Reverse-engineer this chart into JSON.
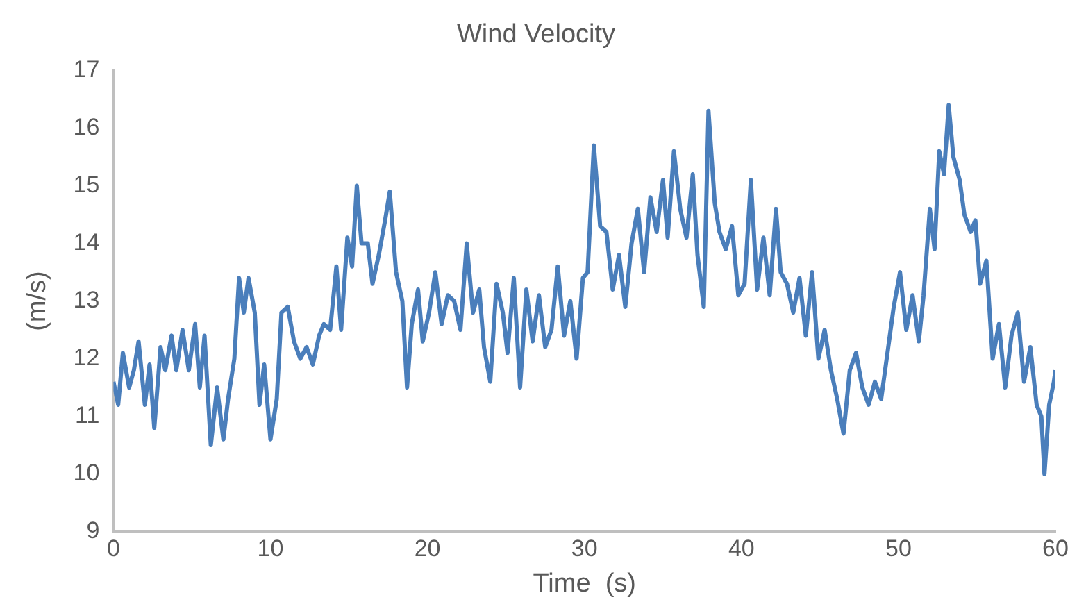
{
  "chart_data": {
    "type": "line",
    "title": "Wind Velocity",
    "xlabel": "Time  (s)",
    "ylabel": "(m/s)",
    "xlim": [
      0,
      60
    ],
    "xticks": [
      0,
      10,
      20,
      30,
      40,
      50,
      60
    ],
    "ylim": [
      9,
      17
    ],
    "yticks": [
      9,
      10,
      11,
      12,
      13,
      14,
      15,
      16,
      17
    ],
    "grid": false,
    "legend": false,
    "marker": "none",
    "line_style": "solid",
    "series": [
      {
        "color": "#4a7ebb",
        "x": [
          0,
          0.3,
          0.6,
          1,
          1.3,
          1.6,
          2,
          2.3,
          2.6,
          3,
          3.3,
          3.7,
          4,
          4.4,
          4.8,
          5.2,
          5.5,
          5.8,
          6.2,
          6.6,
          7,
          7.3,
          7.7,
          8,
          8.3,
          8.6,
          9,
          9.3,
          9.6,
          10,
          10.4,
          10.7,
          11.1,
          11.5,
          11.9,
          12.3,
          12.7,
          13.1,
          13.4,
          13.8,
          14.2,
          14.5,
          14.9,
          15.2,
          15.5,
          15.8,
          16.2,
          16.5,
          16.9,
          17.3,
          17.6,
          18,
          18.4,
          18.7,
          19,
          19.4,
          19.7,
          20.1,
          20.5,
          20.9,
          21.3,
          21.7,
          22.1,
          22.5,
          22.9,
          23.3,
          23.6,
          24,
          24.4,
          24.8,
          25.1,
          25.5,
          25.9,
          26.3,
          26.7,
          27.1,
          27.5,
          27.9,
          28.3,
          28.7,
          29.1,
          29.5,
          29.9,
          30.2,
          30.6,
          31,
          31.4,
          31.8,
          32.2,
          32.6,
          33,
          33.4,
          33.8,
          34.2,
          34.6,
          35,
          35.3,
          35.7,
          36.1,
          36.5,
          36.9,
          37.2,
          37.6,
          37.9,
          38.3,
          38.6,
          39,
          39.4,
          39.8,
          40.2,
          40.6,
          41,
          41.4,
          41.8,
          42.2,
          42.5,
          42.9,
          43.3,
          43.7,
          44.1,
          44.5,
          44.9,
          45.3,
          45.7,
          46.1,
          46.5,
          46.9,
          47.3,
          47.7,
          48.1,
          48.5,
          48.9,
          49.3,
          49.7,
          50.1,
          50.5,
          50.9,
          51.3,
          51.6,
          52,
          52.3,
          52.6,
          52.9,
          53.2,
          53.5,
          53.9,
          54.2,
          54.6,
          54.9,
          55.2,
          55.6,
          56,
          56.4,
          56.8,
          57.2,
          57.6,
          58,
          58.4,
          58.8,
          59.1,
          59.3,
          59.6,
          59.9,
          60
        ],
        "values": [
          11.6,
          11.2,
          12.1,
          11.5,
          11.8,
          12.3,
          11.2,
          11.9,
          10.8,
          12.2,
          11.8,
          12.4,
          11.8,
          12.5,
          11.8,
          12.6,
          11.5,
          12.4,
          10.5,
          11.5,
          10.6,
          11.3,
          12,
          13.4,
          12.8,
          13.4,
          12.8,
          11.2,
          11.9,
          10.6,
          11.3,
          12.8,
          12.9,
          12.3,
          12,
          12.2,
          11.9,
          12.4,
          12.6,
          12.5,
          13.6,
          12.5,
          14.1,
          13.6,
          15,
          14,
          14,
          13.3,
          13.8,
          14.4,
          14.9,
          13.5,
          13,
          11.5,
          12.6,
          13.2,
          12.3,
          12.8,
          13.5,
          12.6,
          13.1,
          13,
          12.5,
          14,
          12.8,
          13.2,
          12.2,
          11.6,
          13.3,
          12.8,
          12.1,
          13.4,
          11.5,
          13.2,
          12.3,
          13.1,
          12.2,
          12.5,
          13.6,
          12.4,
          13,
          12,
          13.4,
          13.5,
          15.7,
          14.3,
          14.2,
          13.2,
          13.8,
          12.9,
          14,
          14.6,
          13.5,
          14.8,
          14.2,
          15.1,
          14.1,
          15.6,
          14.6,
          14.1,
          15.2,
          13.8,
          12.9,
          16.3,
          14.7,
          14.2,
          13.9,
          14.3,
          13.1,
          13.3,
          15.1,
          13.2,
          14.1,
          13.1,
          14.6,
          13.5,
          13.3,
          12.8,
          13.4,
          12.4,
          13.5,
          12,
          12.5,
          11.8,
          11.3,
          10.7,
          11.8,
          12.1,
          11.5,
          11.2,
          11.6,
          11.3,
          12.1,
          12.9,
          13.5,
          12.5,
          13.1,
          12.3,
          13.1,
          14.6,
          13.9,
          15.6,
          15.2,
          16.4,
          15.5,
          15.1,
          14.5,
          14.2,
          14.4,
          13.3,
          13.7,
          12,
          12.6,
          11.5,
          12.4,
          12.8,
          11.6,
          12.2,
          11.2,
          11,
          10,
          11.2,
          11.6,
          11.8
        ]
      }
    ]
  }
}
